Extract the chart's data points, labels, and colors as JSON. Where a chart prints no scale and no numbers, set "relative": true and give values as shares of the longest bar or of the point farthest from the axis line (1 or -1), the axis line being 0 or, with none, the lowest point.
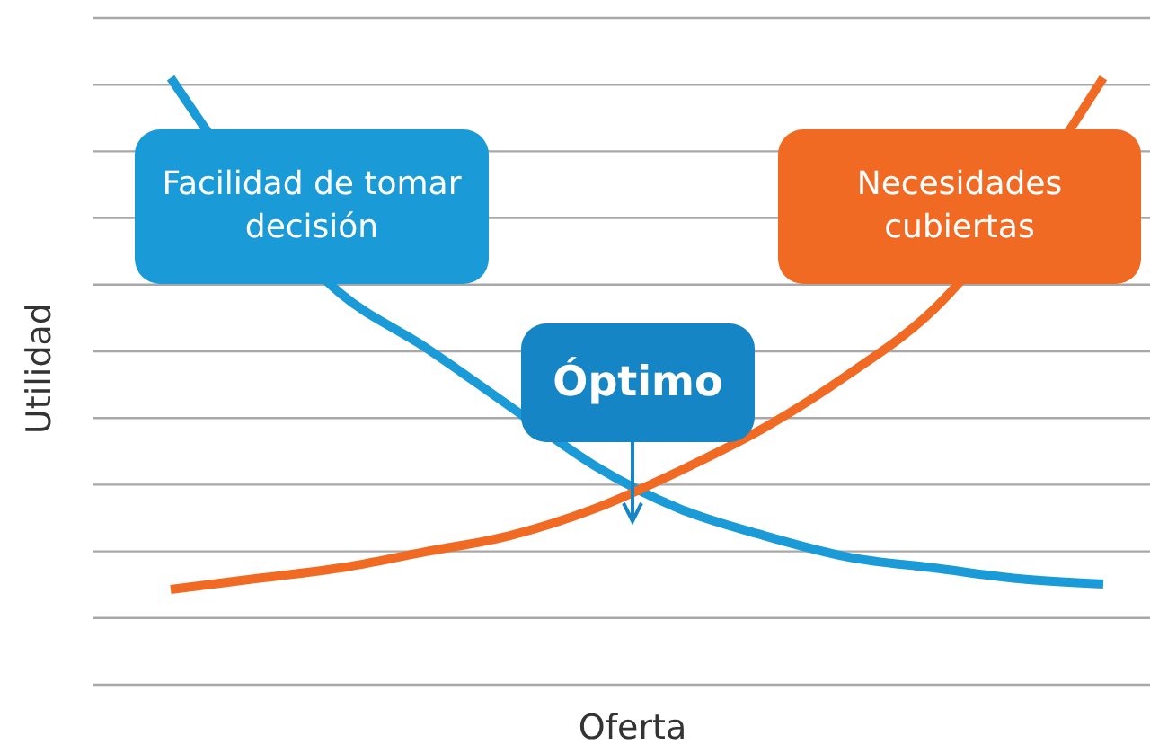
{
  "chart_data": {
    "type": "line",
    "relative": true,
    "xlabel": "Oferta",
    "ylabel": "Utilidad",
    "categories": [
      null,
      null,
      null,
      null,
      null,
      null,
      null,
      null,
      null,
      null,
      null,
      null
    ],
    "series": [
      {
        "name": "Facilidad de tomar decisión",
        "color": "#1a9ad6",
        "values": [
          1.0,
          null,
          0.6,
          0.5,
          0.39,
          0.28,
          0.2,
          0.15,
          0.11,
          0.09,
          0.07,
          0.06
        ]
      },
      {
        "name": "Necesidades cubiertas",
        "color": "#f06a23",
        "values": [
          0.05,
          0.07,
          0.09,
          0.12,
          0.15,
          0.2,
          0.27,
          0.35,
          0.45,
          0.57,
          null,
          1.0
        ]
      }
    ],
    "annotations": [
      "Óptimo"
    ],
    "grid": "y",
    "legend": false
  }
}
